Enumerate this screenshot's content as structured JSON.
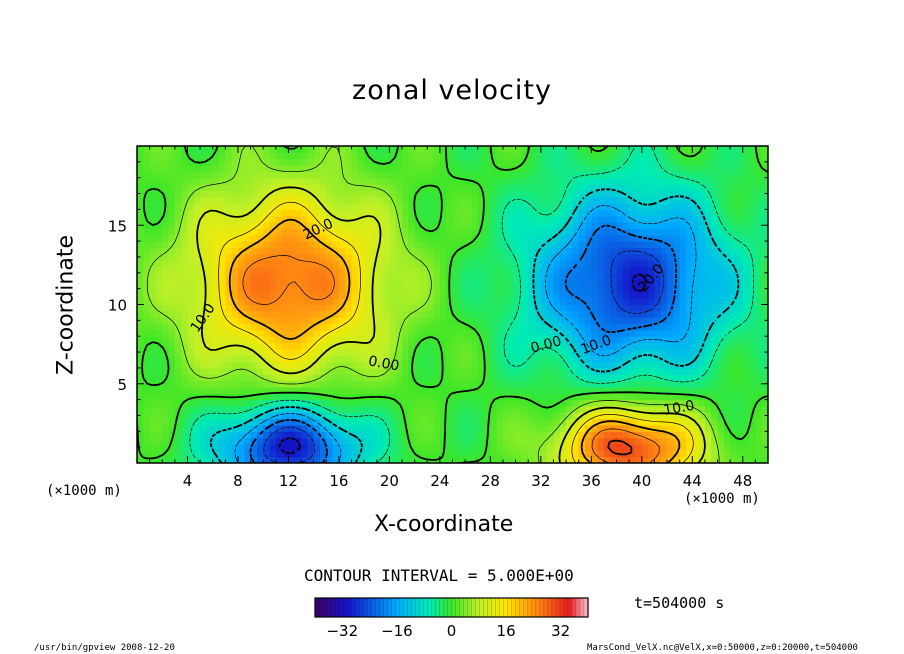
{
  "chart_data": {
    "type": "heatmap",
    "title": "zonal velocity",
    "xlabel": "X-coordinate",
    "ylabel": "Z-coordinate",
    "x_unit": "(×1000 m)",
    "y_unit": "(×1000 m)",
    "xlim": [
      0,
      50
    ],
    "ylim": [
      0,
      20
    ],
    "x_ticks": [
      4,
      8,
      12,
      16,
      20,
      24,
      28,
      32,
      36,
      40,
      44,
      48
    ],
    "y_ticks": [
      5,
      10,
      15
    ],
    "contour_interval": "CONTOUR INTERVAL = 5.000E+00",
    "contour_labels": [
      "20.0",
      "10.0",
      "0.00",
      "0.00",
      "10.0",
      "20.0",
      "10.0"
    ],
    "colorbar": {
      "min": -40,
      "max": 40,
      "ticks": [
        -32,
        -16,
        0,
        16,
        32
      ]
    },
    "features": [
      {
        "x": 12,
        "z": 11.5,
        "value": 28
      },
      {
        "x": 39,
        "z": 11.5,
        "value": -28
      },
      {
        "x": 12,
        "z": 1,
        "value": -30
      },
      {
        "x": 39,
        "z": 1,
        "value": 32
      }
    ]
  },
  "annotations": {
    "time": "t=504000 s",
    "footer_left": "/usr/bin/gpview   2008-12-20",
    "footer_right": "MarsCond_VelX.nc@VelX,x=0:50000,z=0:20000,t=504000"
  }
}
